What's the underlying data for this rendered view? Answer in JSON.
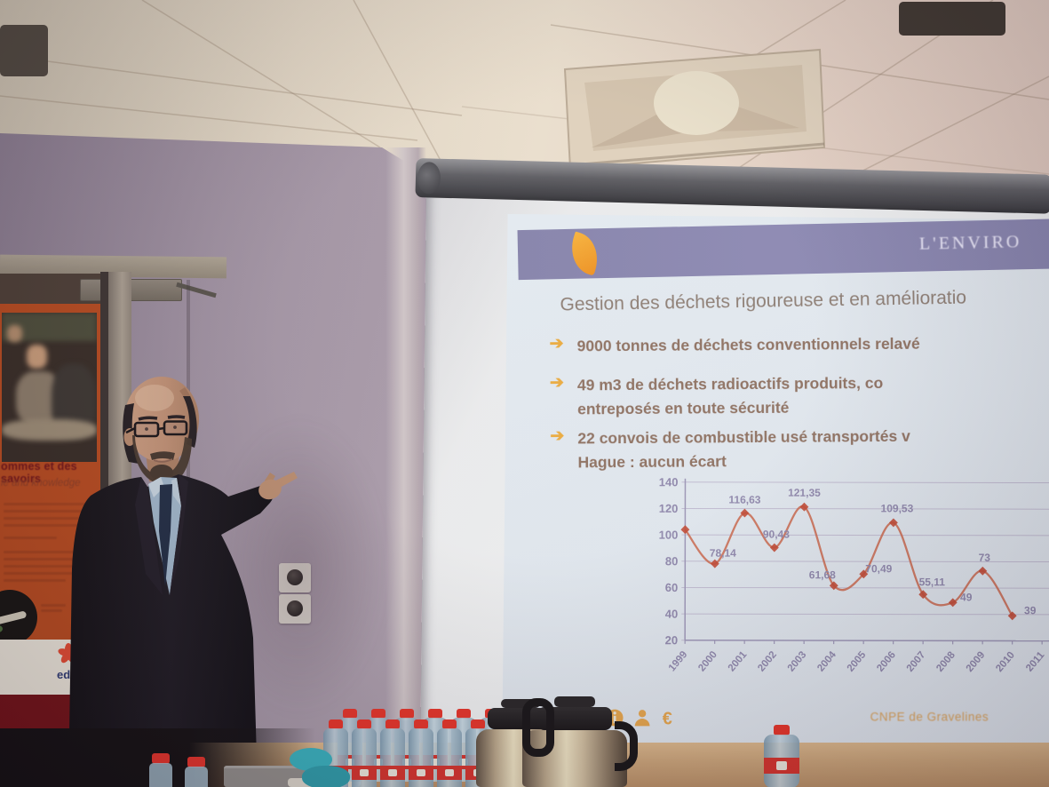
{
  "photo": {
    "description": "Presenter in a meeting room pointing at a projected slide about waste management",
    "wall_poster": {
      "title_fragment": "ommes et des savoirs",
      "subtitle_fragment": "le and knowledge",
      "brand_logo": "edf"
    },
    "projected_slide": {
      "band_title_fragment": "L'ENVIRO",
      "heading_fragment": "Gestion des déchets rigoureuse et en amélioratio",
      "bullet_marker": "➔",
      "bullets": [
        {
          "lines": [
            "9000 tonnes de déchets conventionnels relavé"
          ]
        },
        {
          "lines": [
            "49 m3 de déchets radioactifs produits, co",
            "entreposés en toute sécurité"
          ]
        },
        {
          "lines": [
            "22 convois de combustible usé transportés v",
            "Hague : aucun écart"
          ]
        }
      ],
      "footer_site_label": "CNPE de Gravelines",
      "footer_icon_names": [
        "leaf-icon",
        "dome-icon",
        "eye-icon",
        "info-icon",
        "person-icon",
        "euro-icon"
      ],
      "colors": {
        "band": "#8784ae",
        "accent_orange": "#f0a433",
        "heading_text": "#8b7c73",
        "bullet_text": "#8c6f60",
        "footer_orange": "#d9a057",
        "poster_orange": "#b5481d"
      }
    }
  },
  "chart_data": {
    "type": "line",
    "title": "",
    "xlabel": "",
    "ylabel": "",
    "x": [
      "1999",
      "2000",
      "2001",
      "2002",
      "2003",
      "2004",
      "2005",
      "2006",
      "2007",
      "2008",
      "2009",
      "2010",
      "2011"
    ],
    "values": [
      104,
      78.14,
      116.63,
      90.43,
      121.35,
      61.68,
      70.49,
      109.53,
      55.11,
      49,
      73,
      39,
      null
    ],
    "point_labels": [
      "",
      "78,14",
      "116,63",
      "90,43",
      "121,35",
      "61,68",
      "70,49",
      "109,53",
      "55,11",
      "49",
      "73",
      "39",
      ""
    ],
    "ylim": [
      20,
      140
    ],
    "y_ticks": [
      20,
      40,
      60,
      80,
      100,
      120,
      140
    ],
    "grid": true,
    "legend": "none",
    "line_color": "#c96a52",
    "marker_color": "#bf4733",
    "label_color": "#8d86ab",
    "axis_color": "#9a94b5",
    "grid_color": "#bfbad0"
  }
}
